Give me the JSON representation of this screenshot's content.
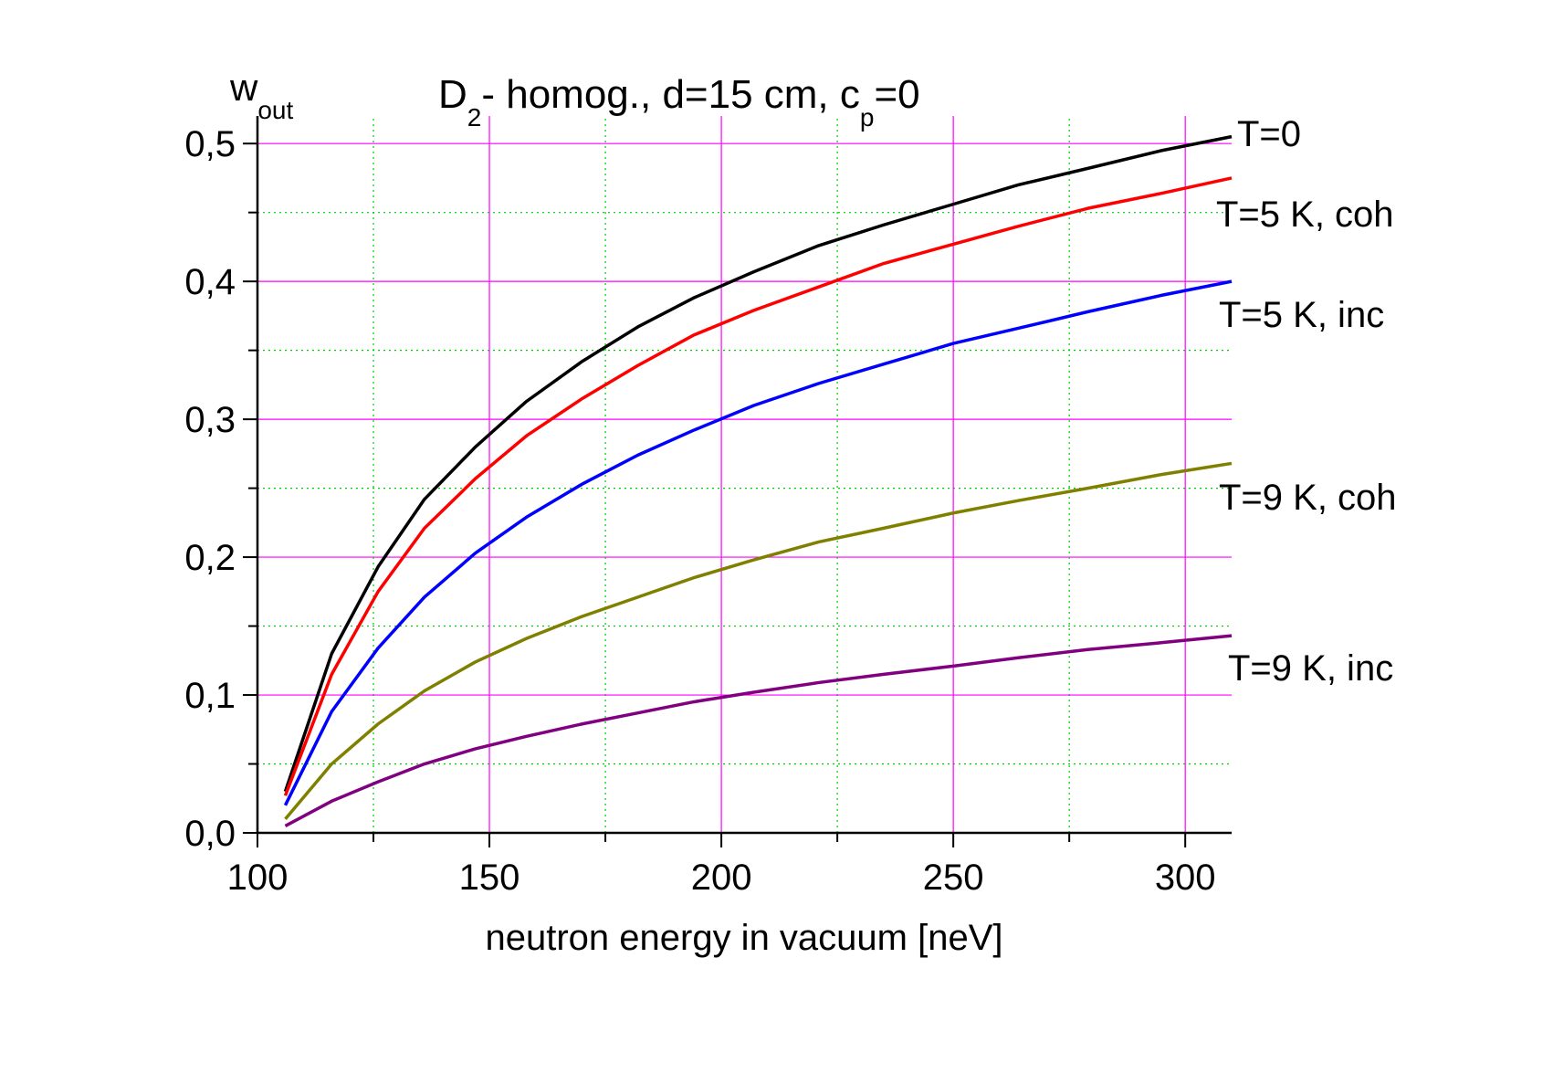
{
  "chart_data": {
    "type": "line",
    "title": [
      "D",
      "2",
      "- homog., d=15 cm, c",
      "p",
      "=0"
    ],
    "ylabel": [
      "w",
      "out"
    ],
    "xlabel": "neutron energy in vacuum [neV]",
    "x": [
      106,
      116,
      126,
      136,
      147,
      158,
      170,
      182,
      194,
      207,
      221,
      235,
      250,
      264,
      279,
      295,
      310
    ],
    "series": [
      {
        "name": "T=0",
        "color": "#000000",
        "values": [
          0.03,
          0.13,
          0.193,
          0.242,
          0.28,
          0.313,
          0.342,
          0.367,
          0.388,
          0.407,
          0.426,
          0.441,
          0.456,
          0.47,
          0.482,
          0.495,
          0.505
        ]
      },
      {
        "name": "T=5 K, coh",
        "color": "#ff0000",
        "values": [
          0.027,
          0.115,
          0.175,
          0.221,
          0.257,
          0.288,
          0.315,
          0.339,
          0.361,
          0.379,
          0.396,
          0.413,
          0.427,
          0.44,
          0.453,
          0.464,
          0.475
        ]
      },
      {
        "name": "T=5 K, inc",
        "color": "#0000ff",
        "values": [
          0.02,
          0.088,
          0.134,
          0.171,
          0.203,
          0.229,
          0.253,
          0.274,
          0.292,
          0.31,
          0.326,
          0.34,
          0.355,
          0.366,
          0.378,
          0.39,
          0.4
        ]
      },
      {
        "name": "T=9 K, coh",
        "color": "#808000",
        "values": [
          0.01,
          0.05,
          0.079,
          0.103,
          0.124,
          0.141,
          0.157,
          0.171,
          0.185,
          0.198,
          0.211,
          0.221,
          0.232,
          0.241,
          0.25,
          0.26,
          0.268
        ]
      },
      {
        "name": "T=9 K, inc",
        "color": "#800080",
        "values": [
          0.005,
          0.023,
          0.037,
          0.05,
          0.061,
          0.07,
          0.079,
          0.087,
          0.095,
          0.102,
          0.109,
          0.115,
          0.121,
          0.127,
          0.133,
          0.138,
          0.143
        ]
      }
    ],
    "xlim": [
      100,
      310
    ],
    "ylim": [
      0,
      0.52
    ],
    "xticks": [
      100,
      150,
      200,
      250,
      300
    ],
    "yticks": [
      {
        "value": 0,
        "label": "0,0"
      },
      {
        "value": 0.1,
        "label": "0,1"
      },
      {
        "value": 0.2,
        "label": "0,2"
      },
      {
        "value": 0.3,
        "label": "0,3"
      },
      {
        "value": 0.4,
        "label": "0,4"
      },
      {
        "value": 0.5,
        "label": "0,5"
      }
    ],
    "xminorticks": [
      125,
      175,
      225,
      275
    ],
    "yminorticks": [
      0.05,
      0.15,
      0.25,
      0.35,
      0.45
    ],
    "grid": true,
    "grid_color": "#ff00ff",
    "minor_grid_color": "#00cc00"
  }
}
